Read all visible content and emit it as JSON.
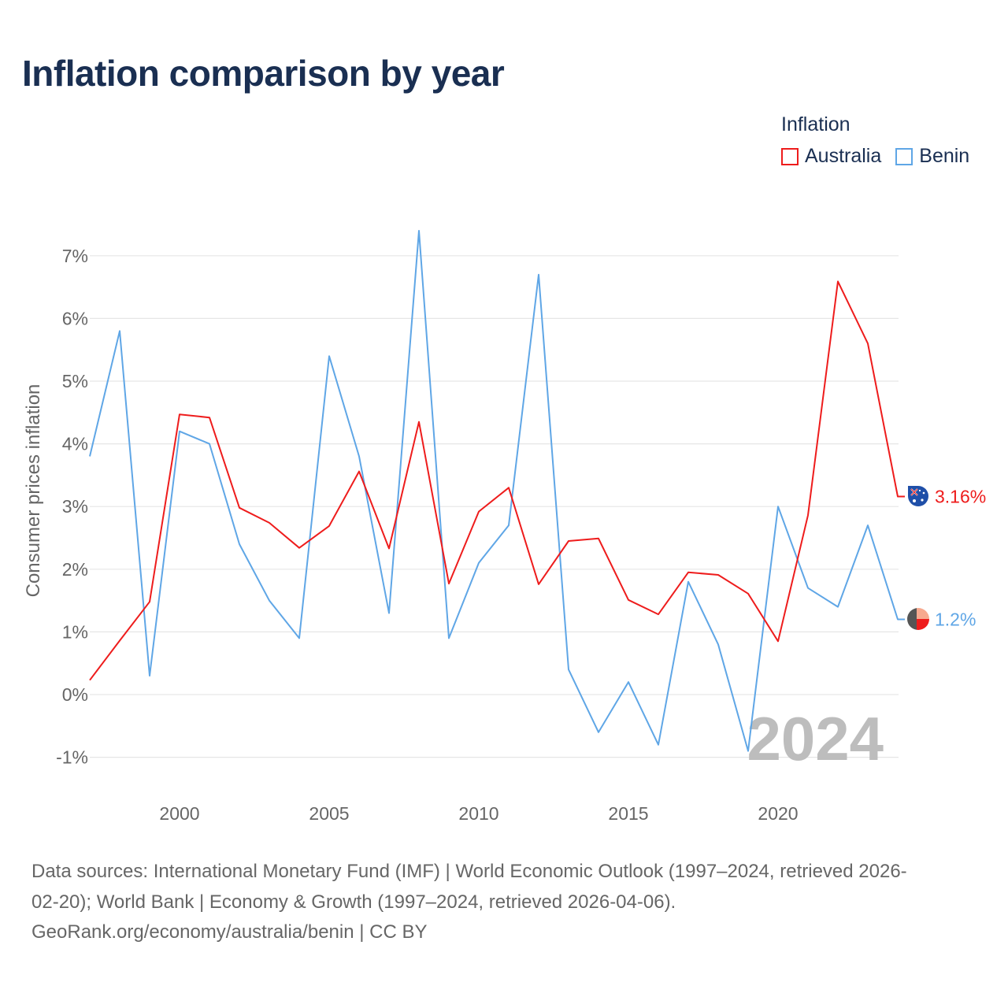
{
  "title": "Inflation comparison by year",
  "legend": {
    "title": "Inflation",
    "items": [
      {
        "label": "Australia",
        "color": "#ee1c1c"
      },
      {
        "label": "Benin",
        "color": "#5fa6e6"
      }
    ]
  },
  "footer": {
    "line1": "Data sources: International Monetary Fund (IMF) | World Economic Outlook (1997–2024, retrieved 2026-",
    "line2": "02-20); World Bank | Economy & Growth (1997–2024, retrieved 2026-04-06).",
    "line3": "GeoRank.org/economy/australia/benin | CC BY"
  },
  "chart_data": {
    "type": "line",
    "title": "Inflation comparison by year",
    "ylabel": "Consumer prices inflation",
    "xlabel": "",
    "xlim": [
      1997,
      2024.5
    ],
    "ylim": [
      -1.5,
      7.8
    ],
    "y_ticks": [
      -1,
      0,
      1,
      2,
      3,
      4,
      5,
      6,
      7
    ],
    "y_tick_labels": [
      "-1%",
      "0%",
      "1%",
      "2%",
      "3%",
      "4%",
      "5%",
      "6%",
      "7%"
    ],
    "x_ticks": [
      2000,
      2005,
      2010,
      2015,
      2020
    ],
    "x_tick_labels": [
      "2000",
      "2005",
      "2010",
      "2015",
      "2020"
    ],
    "grid": true,
    "current_year": "2024",
    "x": [
      1997,
      1998,
      1999,
      2000,
      2001,
      2002,
      2003,
      2004,
      2005,
      2006,
      2007,
      2008,
      2009,
      2010,
      2011,
      2012,
      2013,
      2014,
      2015,
      2016,
      2017,
      2018,
      2019,
      2020,
      2021,
      2022,
      2023,
      2024
    ],
    "series": [
      {
        "name": "Australia",
        "color": "#ee1c1c",
        "end_label": "3.16%",
        "values": [
          0.23,
          0.86,
          1.48,
          4.47,
          4.42,
          2.98,
          2.74,
          2.34,
          2.69,
          3.56,
          2.33,
          4.35,
          1.77,
          2.92,
          3.3,
          1.76,
          2.45,
          2.49,
          1.51,
          1.28,
          1.95,
          1.91,
          1.61,
          0.85,
          2.86,
          6.59,
          5.6,
          3.16
        ]
      },
      {
        "name": "Benin",
        "color": "#5fa6e6",
        "end_label": "1.2%",
        "values": [
          3.8,
          5.8,
          0.3,
          4.2,
          4.0,
          2.4,
          1.5,
          0.9,
          5.4,
          3.8,
          1.3,
          7.4,
          0.9,
          2.1,
          2.7,
          6.7,
          0.4,
          -0.6,
          0.2,
          -0.8,
          1.8,
          0.8,
          -0.9,
          3.0,
          1.7,
          1.4,
          2.7,
          1.2
        ]
      }
    ]
  }
}
